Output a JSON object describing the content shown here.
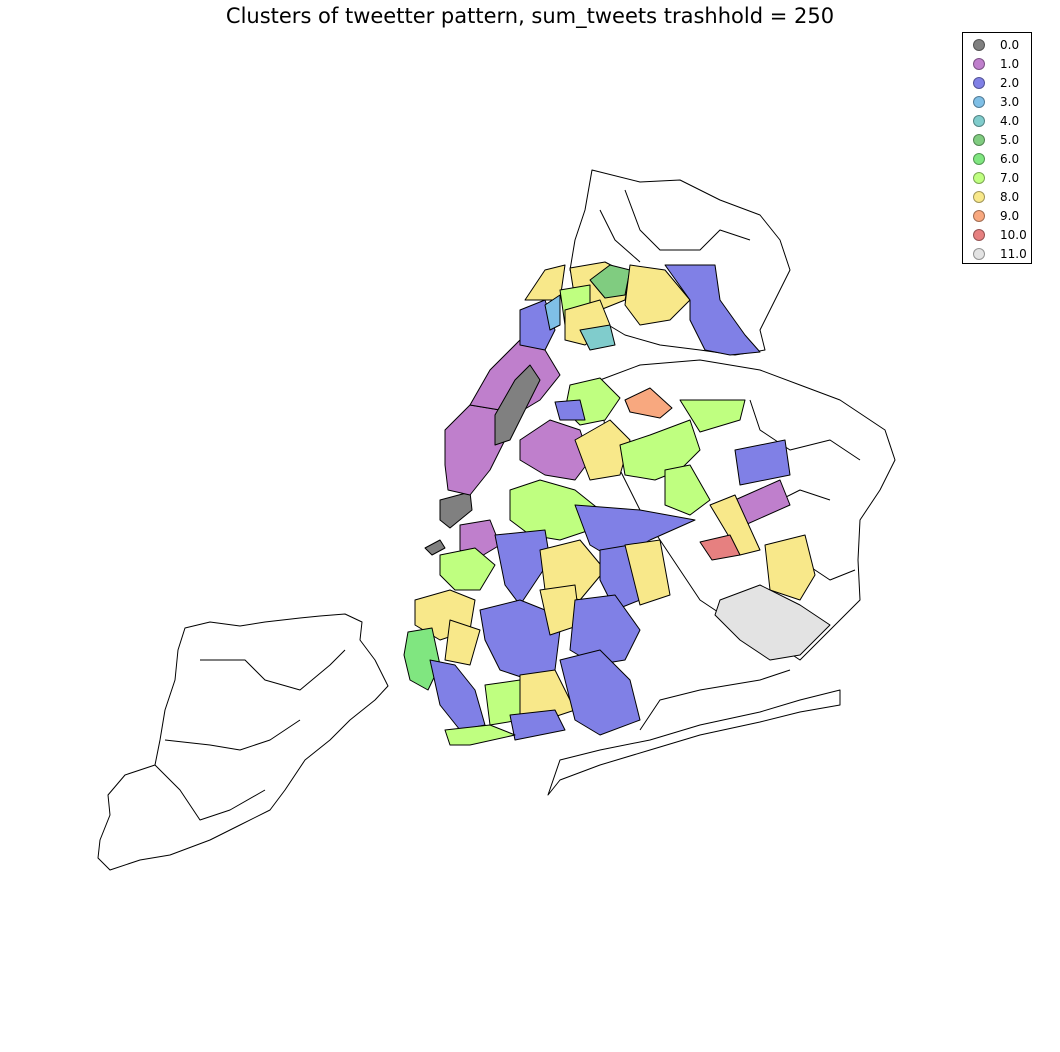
{
  "title": "Clusters of tweetter pattern, sum_tweets trashhold = 250",
  "legend": {
    "placement": "top-right",
    "items": [
      {
        "label": "0.0",
        "color": "#808080"
      },
      {
        "label": "1.0",
        "color": "#bf7fcc"
      },
      {
        "label": "2.0",
        "color": "#8080e6"
      },
      {
        "label": "3.0",
        "color": "#7fbfe6"
      },
      {
        "label": "4.0",
        "color": "#80cccc"
      },
      {
        "label": "5.0",
        "color": "#80cc80"
      },
      {
        "label": "6.0",
        "color": "#80e680"
      },
      {
        "label": "7.0",
        "color": "#bfff80"
      },
      {
        "label": "8.0",
        "color": "#f8e88a"
      },
      {
        "label": "9.0",
        "color": "#f8a87f"
      },
      {
        "label": "10.0",
        "color": "#e68080"
      },
      {
        "label": "11.0",
        "color": "#e3e3e3"
      }
    ]
  },
  "map": {
    "subject": "New York City neighborhoods choropleth",
    "unclustered_fill": "#ffffff",
    "boundary_color": "#000000"
  }
}
